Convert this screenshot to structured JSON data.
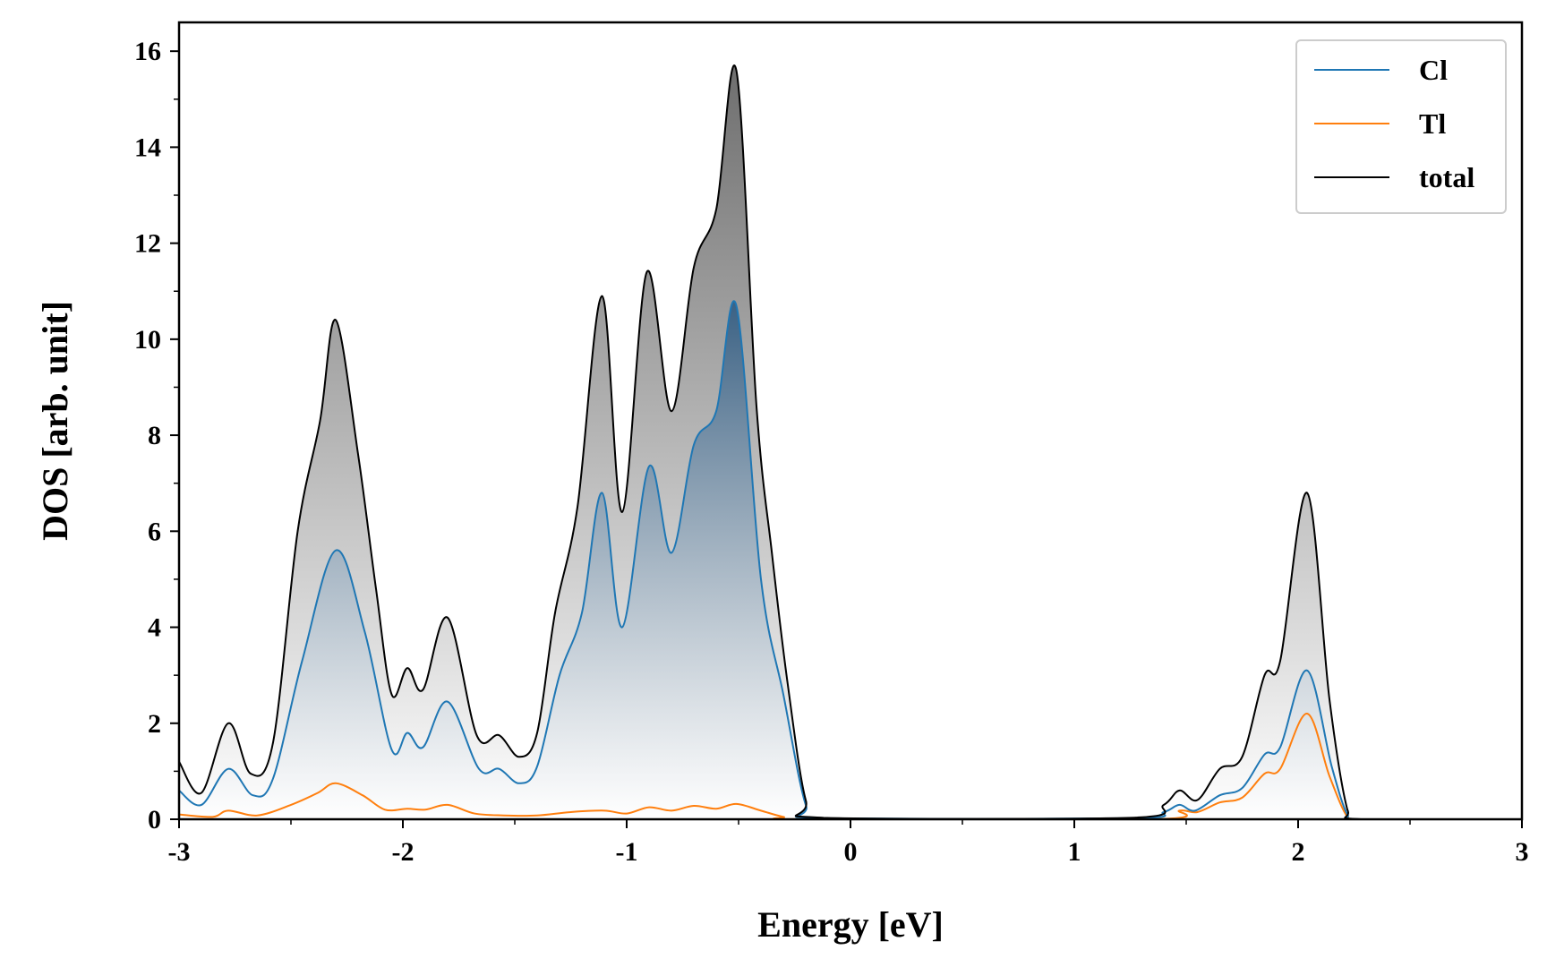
{
  "chart_data": {
    "type": "area",
    "title": "",
    "xlabel": "Energy [eV]",
    "ylabel": "DOS [arb. unit]",
    "xlim": [
      -3,
      3
    ],
    "ylim": [
      0,
      16.6
    ],
    "x_ticks": [
      -3,
      -2,
      -1,
      0,
      1,
      2,
      3
    ],
    "x_tick_labels": [
      "-3",
      "-2",
      "-1",
      "0",
      "1",
      "2",
      "3"
    ],
    "y_ticks": [
      0,
      2,
      4,
      6,
      8,
      10,
      12,
      14,
      16
    ],
    "y_tick_labels": [
      "0",
      "2",
      "4",
      "6",
      "8",
      "10",
      "12",
      "14",
      "16"
    ],
    "grid": false,
    "legend_position": "top-right",
    "series": [
      {
        "name": "Cl",
        "color": "#1f77b4",
        "filled": true,
        "points": [
          [
            -3.0,
            0.6
          ],
          [
            -2.9,
            0.3
          ],
          [
            -2.78,
            1.05
          ],
          [
            -2.67,
            0.5
          ],
          [
            -2.58,
            0.85
          ],
          [
            -2.45,
            3.3
          ],
          [
            -2.3,
            5.6
          ],
          [
            -2.17,
            3.9
          ],
          [
            -2.05,
            1.45
          ],
          [
            -1.98,
            1.8
          ],
          [
            -1.91,
            1.5
          ],
          [
            -1.8,
            2.45
          ],
          [
            -1.66,
            1.05
          ],
          [
            -1.57,
            1.05
          ],
          [
            -1.48,
            0.75
          ],
          [
            -1.4,
            1.1
          ],
          [
            -1.3,
            3.0
          ],
          [
            -1.2,
            4.3
          ],
          [
            -1.11,
            6.8
          ],
          [
            -1.02,
            4.0
          ],
          [
            -0.9,
            7.35
          ],
          [
            -0.8,
            5.55
          ],
          [
            -0.7,
            7.8
          ],
          [
            -0.6,
            8.5
          ],
          [
            -0.51,
            10.7
          ],
          [
            -0.4,
            5.0
          ],
          [
            -0.3,
            2.6
          ],
          [
            -0.2,
            0.3
          ],
          [
            -0.12,
            0.02
          ],
          [
            1.25,
            0.02
          ],
          [
            1.4,
            0.15
          ],
          [
            1.47,
            0.3
          ],
          [
            1.54,
            0.18
          ],
          [
            1.65,
            0.5
          ],
          [
            1.75,
            0.65
          ],
          [
            1.85,
            1.35
          ],
          [
            1.92,
            1.5
          ],
          [
            2.04,
            3.1
          ],
          [
            2.15,
            1.1
          ],
          [
            2.22,
            0.1
          ],
          [
            2.28,
            0.0
          ],
          [
            3.0,
            0.0
          ]
        ]
      },
      {
        "name": "Tl",
        "color": "#ff7f0e",
        "filled": false,
        "points": [
          [
            -3.0,
            0.1
          ],
          [
            -2.85,
            0.05
          ],
          [
            -2.78,
            0.18
          ],
          [
            -2.65,
            0.08
          ],
          [
            -2.5,
            0.3
          ],
          [
            -2.38,
            0.55
          ],
          [
            -2.3,
            0.75
          ],
          [
            -2.18,
            0.5
          ],
          [
            -2.08,
            0.2
          ],
          [
            -1.98,
            0.22
          ],
          [
            -1.9,
            0.2
          ],
          [
            -1.8,
            0.3
          ],
          [
            -1.68,
            0.12
          ],
          [
            -1.55,
            0.08
          ],
          [
            -1.4,
            0.08
          ],
          [
            -1.25,
            0.15
          ],
          [
            -1.1,
            0.18
          ],
          [
            -1.0,
            0.12
          ],
          [
            -0.9,
            0.25
          ],
          [
            -0.8,
            0.18
          ],
          [
            -0.7,
            0.28
          ],
          [
            -0.6,
            0.22
          ],
          [
            -0.51,
            0.32
          ],
          [
            -0.4,
            0.18
          ],
          [
            -0.3,
            0.05
          ],
          [
            -0.2,
            0.0
          ],
          [
            1.35,
            0.0
          ],
          [
            1.47,
            0.18
          ],
          [
            1.55,
            0.15
          ],
          [
            1.65,
            0.35
          ],
          [
            1.75,
            0.45
          ],
          [
            1.85,
            0.95
          ],
          [
            1.92,
            1.05
          ],
          [
            2.04,
            2.2
          ],
          [
            2.14,
            0.9
          ],
          [
            2.22,
            0.05
          ],
          [
            2.28,
            0.0
          ],
          [
            3.0,
            0.0
          ]
        ]
      },
      {
        "name": "total",
        "color": "#000000",
        "filled": true,
        "points": [
          [
            -3.0,
            1.2
          ],
          [
            -2.9,
            0.55
          ],
          [
            -2.78,
            2.0
          ],
          [
            -2.68,
            0.95
          ],
          [
            -2.58,
            1.6
          ],
          [
            -2.47,
            6.0
          ],
          [
            -2.37,
            8.3
          ],
          [
            -2.3,
            10.4
          ],
          [
            -2.2,
            7.6
          ],
          [
            -2.12,
            4.8
          ],
          [
            -2.05,
            2.6
          ],
          [
            -1.98,
            3.15
          ],
          [
            -1.91,
            2.7
          ],
          [
            -1.8,
            4.2
          ],
          [
            -1.67,
            1.75
          ],
          [
            -1.57,
            1.75
          ],
          [
            -1.48,
            1.3
          ],
          [
            -1.4,
            1.8
          ],
          [
            -1.32,
            4.3
          ],
          [
            -1.22,
            6.5
          ],
          [
            -1.11,
            10.9
          ],
          [
            -1.02,
            6.4
          ],
          [
            -0.91,
            11.4
          ],
          [
            -0.8,
            8.5
          ],
          [
            -0.7,
            11.5
          ],
          [
            -0.6,
            12.7
          ],
          [
            -0.51,
            15.6
          ],
          [
            -0.42,
            8.6
          ],
          [
            -0.35,
            5.5
          ],
          [
            -0.28,
            2.8
          ],
          [
            -0.2,
            0.4
          ],
          [
            -0.12,
            0.03
          ],
          [
            1.25,
            0.03
          ],
          [
            1.4,
            0.3
          ],
          [
            1.47,
            0.6
          ],
          [
            1.55,
            0.4
          ],
          [
            1.65,
            1.05
          ],
          [
            1.75,
            1.3
          ],
          [
            1.85,
            3.0
          ],
          [
            1.92,
            3.3
          ],
          [
            2.04,
            6.8
          ],
          [
            2.14,
            2.5
          ],
          [
            2.22,
            0.2
          ],
          [
            2.28,
            0.0
          ],
          [
            3.0,
            0.0
          ]
        ]
      }
    ]
  }
}
